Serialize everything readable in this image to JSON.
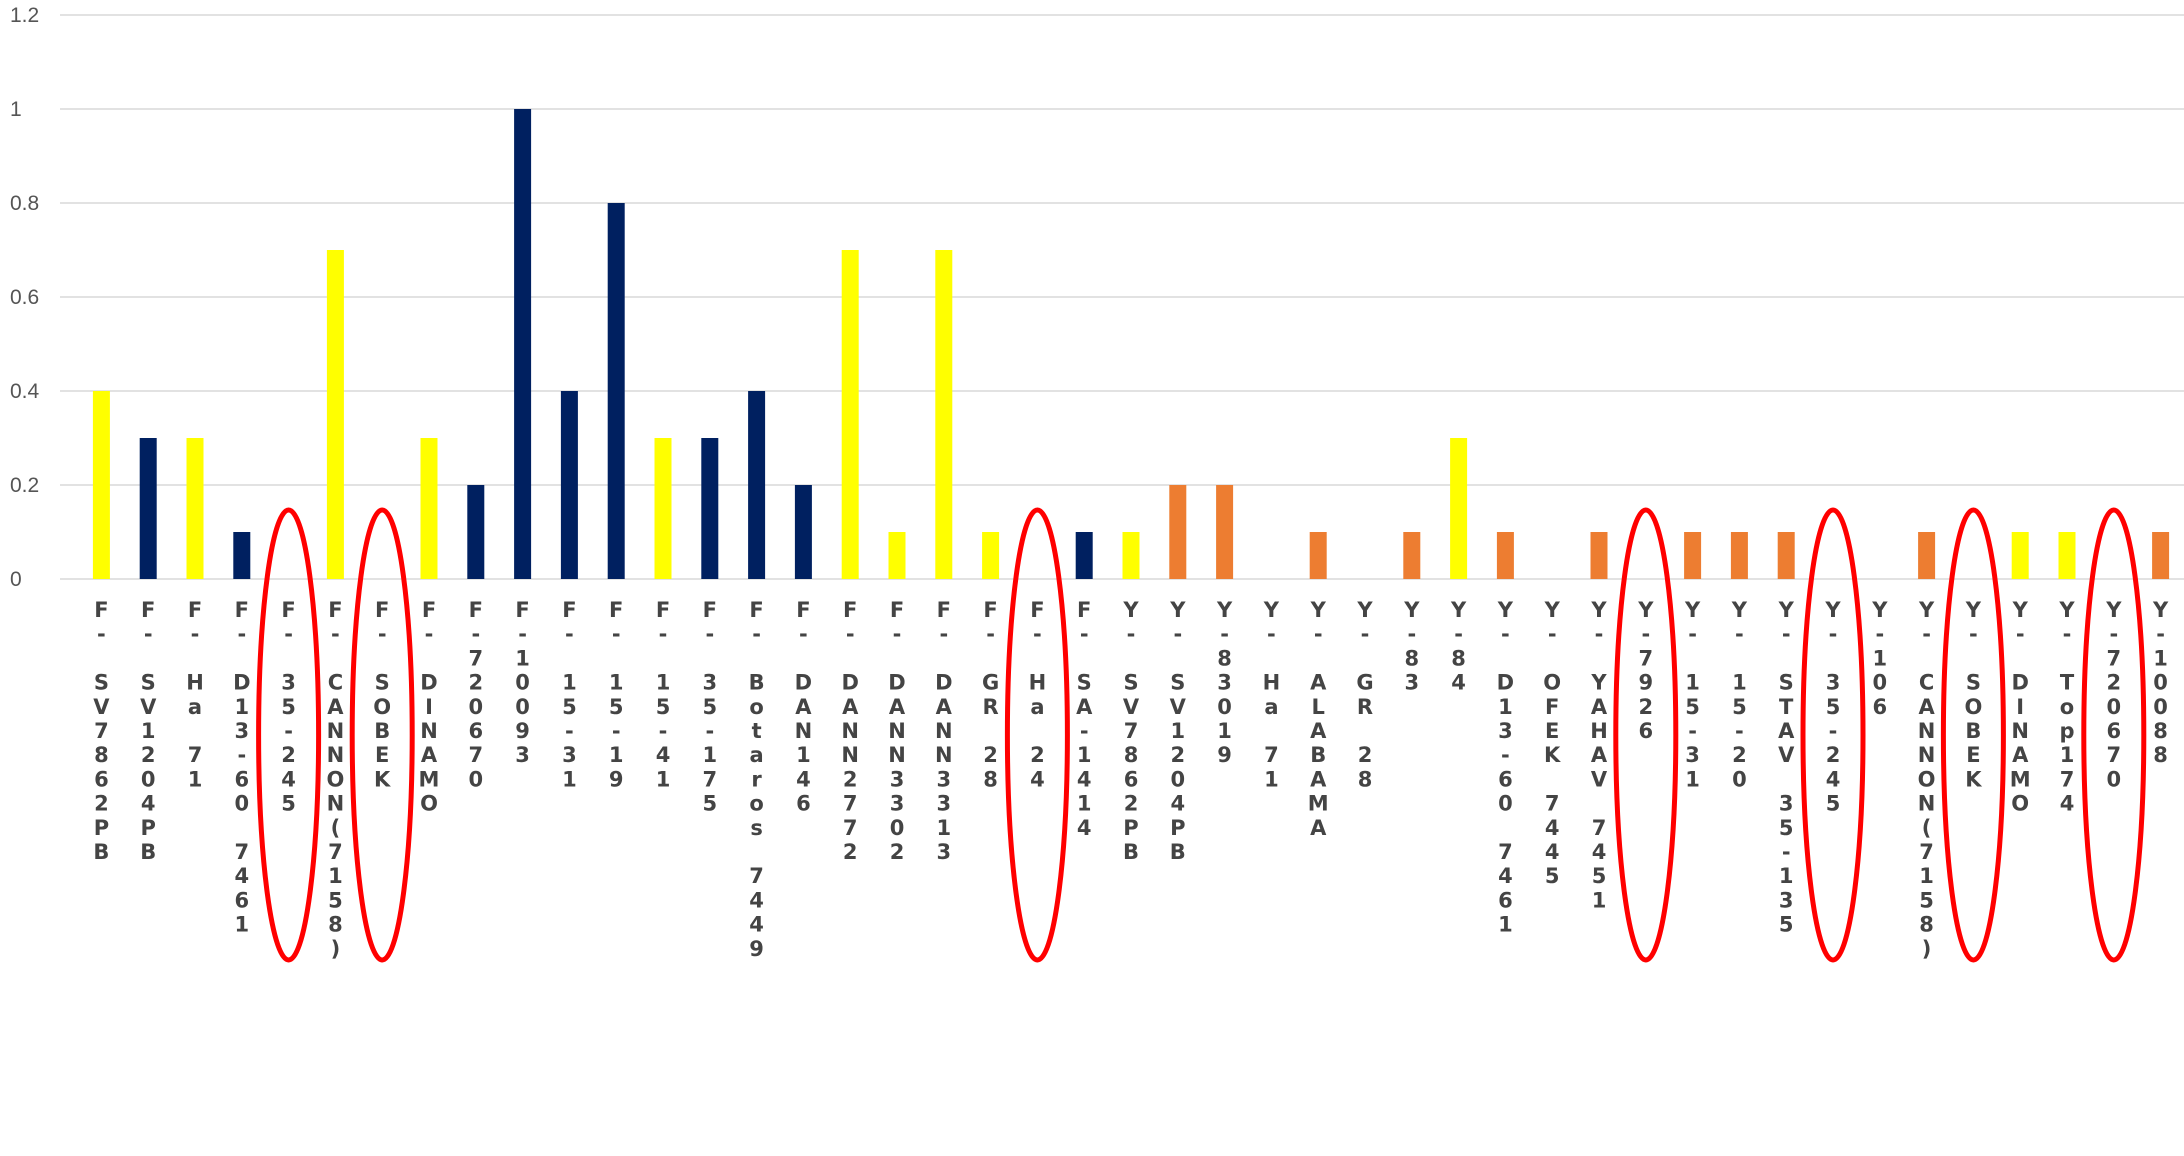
{
  "chart_data": {
    "type": "bar",
    "title": "",
    "xlabel": "",
    "ylabel": "",
    "ylim": [
      0,
      1.2
    ],
    "yticks": [
      "0",
      "0.2",
      "0.4",
      "0.6",
      "0.8",
      "1",
      "1.2"
    ],
    "grid": true,
    "legend": "none",
    "colors": {
      "yellow": "#ffff00",
      "navy": "#002060",
      "orange": "#ed7d31",
      "highlight": "#ff0000"
    },
    "categories": [
      "F-SV7862PB",
      "F-SV12O4PB",
      "F-Ha71",
      "F-D13-60 7461",
      "F-35-245",
      "F-CANNON (7158)",
      "F-SOBEK",
      "F-DINAMO",
      "F-72O67O",
      "F-10093",
      "F-15-31",
      "F-15-19",
      "F-15-41",
      "F-35-175",
      "F-Botaros 7449",
      "F-DAN146",
      "F-DANN2772",
      "F-DANN3302",
      "F-DANN3313",
      "F-GR28",
      "F-Ha24",
      "F-SA-1414",
      "Y-SV7862PB",
      "Y-SV12O4PB",
      "Y-83019",
      "Y-Ha71",
      "Y-ALABAMA",
      "Y-GR28",
      "Y-83",
      "Y-84",
      "Y-D13-60 7461",
      "Y-OFEK 7445",
      "Y-YAHAV 7451",
      "Y-7926",
      "Y-15-31",
      "Y-15-20",
      "Y-STAV 35-135",
      "Y-35-245",
      "Y-106",
      "Y-CANNON (7158)",
      "Y-SOBEK",
      "Y-DINAMO",
      "Y-Top174",
      "Y-72O67O",
      "Y-10088"
    ],
    "values": [
      0.4,
      0.3,
      0.3,
      0.1,
      0,
      0.7,
      0,
      0.3,
      0.2,
      1.0,
      0.4,
      0.8,
      0.3,
      0.3,
      0.4,
      0.2,
      0.7,
      0.1,
      0.7,
      0.1,
      0,
      0.1,
      0.1,
      0.2,
      0.2,
      0,
      0.1,
      0,
      0.1,
      0.3,
      0.1,
      0,
      0.1,
      0,
      0.1,
      0.1,
      0.1,
      0,
      0,
      0.1,
      0,
      0.1,
      0.1,
      0,
      0.1
    ],
    "bar_colors": [
      "yellow",
      "navy",
      "yellow",
      "navy",
      "none",
      "yellow",
      "none",
      "yellow",
      "navy",
      "navy",
      "navy",
      "navy",
      "yellow",
      "navy",
      "navy",
      "navy",
      "yellow",
      "yellow",
      "yellow",
      "yellow",
      "none",
      "navy",
      "yellow",
      "orange",
      "orange",
      "none",
      "orange",
      "none",
      "orange",
      "yellow",
      "orange",
      "none",
      "orange",
      "none",
      "orange",
      "orange",
      "orange",
      "none",
      "none",
      "orange",
      "none",
      "yellow",
      "yellow",
      "none",
      "orange"
    ],
    "tick_labels": [
      [
        "F",
        "-",
        "",
        "S",
        "V",
        "7",
        "8",
        "6",
        "2",
        "P",
        "B"
      ],
      [
        "F",
        "-",
        "",
        "S",
        "V",
        "1",
        "2",
        "0",
        "4",
        "P",
        "B"
      ],
      [
        "F",
        "-",
        "",
        "H",
        "a",
        "",
        "7",
        "1"
      ],
      [
        "F",
        "-",
        "",
        "D",
        "1",
        "3",
        "-",
        "6",
        "0",
        "",
        "7",
        "4",
        "6",
        "1"
      ],
      [
        "F",
        "-",
        "",
        "3",
        "5",
        "-",
        "2",
        "4",
        "5"
      ],
      [
        "F",
        "-",
        "",
        "C",
        "A",
        "N",
        "N",
        "O",
        "N",
        "(",
        "7",
        "1",
        "5",
        "8",
        ")"
      ],
      [
        "F",
        "-",
        "",
        "S",
        "O",
        "B",
        "E",
        "K"
      ],
      [
        "F",
        "-",
        "",
        "D",
        "I",
        "N",
        "A",
        "M",
        "O"
      ],
      [
        "F",
        "-",
        "7",
        "2",
        "0",
        "6",
        "7",
        "0"
      ],
      [
        "F",
        "-",
        "1",
        "0",
        "0",
        "9",
        "3"
      ],
      [
        "F",
        "-",
        "",
        "1",
        "5",
        "-",
        "3",
        "1"
      ],
      [
        "F",
        "-",
        "",
        "1",
        "5",
        "-",
        "1",
        "9"
      ],
      [
        "F",
        "-",
        "",
        "1",
        "5",
        "-",
        "4",
        "1"
      ],
      [
        "F",
        "-",
        "",
        "3",
        "5",
        "-",
        "1",
        "7",
        "5"
      ],
      [
        "F",
        "-",
        "",
        "B",
        "o",
        "t",
        "a",
        "r",
        "o",
        "s",
        "",
        "7",
        "4",
        "4",
        "9"
      ],
      [
        "F",
        "-",
        "",
        "D",
        "A",
        "N",
        "1",
        "4",
        "6"
      ],
      [
        "F",
        "-",
        "",
        "D",
        "A",
        "N",
        "N",
        "2",
        "7",
        "7",
        "2"
      ],
      [
        "F",
        "-",
        "",
        "D",
        "A",
        "N",
        "N",
        "3",
        "3",
        "0",
        "2"
      ],
      [
        "F",
        "-",
        "",
        "D",
        "A",
        "N",
        "N",
        "3",
        "3",
        "1",
        "3"
      ],
      [
        "F",
        "-",
        "",
        "G",
        "R",
        "",
        "2",
        "8"
      ],
      [
        "F",
        "-",
        "",
        "H",
        "a",
        "",
        "2",
        "4"
      ],
      [
        "F",
        "-",
        "",
        "S",
        "A",
        "-",
        "1",
        "4",
        "1",
        "4"
      ],
      [
        "Y",
        "-",
        "",
        "S",
        "V",
        "7",
        "8",
        "6",
        "2",
        "P",
        "B"
      ],
      [
        "Y",
        "-",
        "",
        "S",
        "V",
        "1",
        "2",
        "0",
        "4",
        "P",
        "B"
      ],
      [
        "Y",
        "-",
        "8",
        "3",
        "0",
        "1",
        "9"
      ],
      [
        "Y",
        "-",
        "",
        "H",
        "a",
        "",
        "7",
        "1"
      ],
      [
        "Y",
        "-",
        "",
        "A",
        "L",
        "A",
        "B",
        "A",
        "M",
        "A"
      ],
      [
        "Y",
        "-",
        "",
        "G",
        "R",
        "",
        "2",
        "8"
      ],
      [
        "Y",
        "-",
        "8",
        "3"
      ],
      [
        "Y",
        "-",
        "8",
        "4"
      ],
      [
        "Y",
        "-",
        "",
        "D",
        "1",
        "3",
        "-",
        "6",
        "0",
        "",
        "7",
        "4",
        "6",
        "1"
      ],
      [
        "Y",
        "-",
        "",
        "O",
        "F",
        "E",
        "K",
        "",
        "7",
        "4",
        "4",
        "5"
      ],
      [
        "Y",
        "-",
        "",
        "Y",
        "A",
        "H",
        "A",
        "V",
        "",
        "7",
        "4",
        "5",
        "1"
      ],
      [
        "Y",
        "-",
        "7",
        "9",
        "2",
        "6"
      ],
      [
        "Y",
        "-",
        "",
        "1",
        "5",
        "-",
        "3",
        "1"
      ],
      [
        "Y",
        "-",
        "",
        "1",
        "5",
        "-",
        "2",
        "0"
      ],
      [
        "Y",
        "-",
        "",
        "S",
        "T",
        "A",
        "V",
        "",
        "3",
        "5",
        "-",
        "1",
        "3",
        "5"
      ],
      [
        "Y",
        "-",
        "",
        "3",
        "5",
        "-",
        "2",
        "4",
        "5"
      ],
      [
        "Y",
        "-",
        "1",
        "0",
        "6"
      ],
      [
        "Y",
        "-",
        "",
        "C",
        "A",
        "N",
        "N",
        "O",
        "N",
        "(",
        "7",
        "1",
        "5",
        "8",
        ")"
      ],
      [
        "Y",
        "-",
        "",
        "S",
        "O",
        "B",
        "E",
        "K"
      ],
      [
        "Y",
        "-",
        "",
        "D",
        "I",
        "N",
        "A",
        "M",
        "O"
      ],
      [
        "Y",
        "-",
        "",
        "T",
        "o",
        "p",
        "1",
        "7",
        "4"
      ],
      [
        "Y",
        "-",
        "7",
        "2",
        "0",
        "6",
        "7",
        "0"
      ],
      [
        "Y",
        "-",
        "1",
        "0",
        "0",
        "8",
        "8"
      ]
    ],
    "highlighted_categories": [
      "F-35-245",
      "F-SOBEK",
      "F-Ha24",
      "Y-7926",
      "Y-35-245",
      "Y-SOBEK",
      "Y-72O67O"
    ]
  }
}
